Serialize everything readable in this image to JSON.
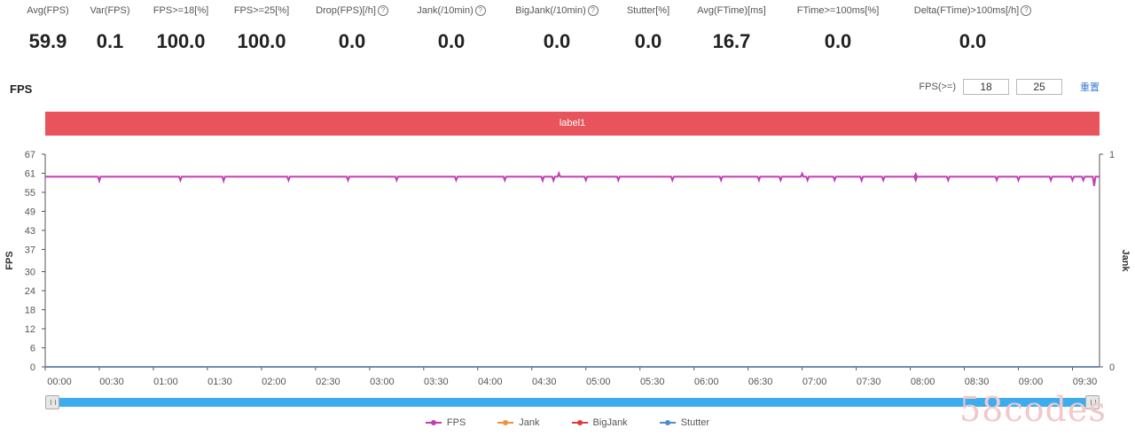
{
  "stats": [
    {
      "label": "Avg(FPS)",
      "value": "59.9",
      "info": false
    },
    {
      "label": "Var(FPS)",
      "value": "0.1",
      "info": false
    },
    {
      "label": "FPS>=18[%]",
      "value": "100.0",
      "info": false
    },
    {
      "label": "FPS>=25[%]",
      "value": "100.0",
      "info": false
    },
    {
      "label": "Drop(FPS)[/h]",
      "value": "0.0",
      "info": true
    },
    {
      "label": "Jank(/10min)",
      "value": "0.0",
      "info": true
    },
    {
      "label": "BigJank(/10min)",
      "value": "0.0",
      "info": true
    },
    {
      "label": "Stutter[%]",
      "value": "0.0",
      "info": false
    },
    {
      "label": "Avg(FTime)[ms]",
      "value": "16.7",
      "info": false
    },
    {
      "label": "FTime>=100ms[%]",
      "value": "0.0",
      "info": false
    },
    {
      "label": "Delta(FTime)>100ms[/h]",
      "value": "0.0",
      "info": true
    }
  ],
  "panel": {
    "title": "FPS",
    "threshold_label": "FPS(>=)",
    "threshold_1": "18",
    "threshold_2": "25",
    "reset_label": "重置"
  },
  "label_band": "label1",
  "colors": {
    "fps": "#c13fb3",
    "jank": "#f0923b",
    "bigjank": "#e23b3b",
    "stutter": "#4a8ecf",
    "band": "#e8535c",
    "slider": "#3cacef"
  },
  "watermark": "58codes",
  "chart_data": {
    "type": "line",
    "y_left": {
      "label": "FPS",
      "ticks": [
        0,
        6,
        12,
        18,
        24,
        30,
        37,
        43,
        49,
        55,
        61,
        67
      ],
      "range": [
        0,
        67
      ]
    },
    "y_right": {
      "label": "Jank",
      "ticks": [
        0,
        1
      ],
      "range": [
        0,
        1
      ]
    },
    "x": {
      "range_minutes": [
        0,
        9.75
      ],
      "ticks": [
        "00:00",
        "00:30",
        "01:00",
        "01:30",
        "02:00",
        "02:30",
        "03:00",
        "03:30",
        "04:00",
        "04:30",
        "05:00",
        "05:30",
        "06:00",
        "06:30",
        "07:00",
        "07:30",
        "08:00",
        "08:30",
        "09:00",
        "09:30"
      ]
    },
    "series": [
      {
        "name": "FPS",
        "axis": "left",
        "baseline": 59.9,
        "dips": [
          [
            0.5,
            58.6
          ],
          [
            1.25,
            58.8
          ],
          [
            1.65,
            58.6
          ],
          [
            2.25,
            58.8
          ],
          [
            2.8,
            58.8
          ],
          [
            3.25,
            58.8
          ],
          [
            3.8,
            58.8
          ],
          [
            4.25,
            58.8
          ],
          [
            4.6,
            58.7
          ],
          [
            4.75,
            61.0
          ],
          [
            4.7,
            58.7
          ],
          [
            5.0,
            58.8
          ],
          [
            5.3,
            58.8
          ],
          [
            5.8,
            58.8
          ],
          [
            6.25,
            58.8
          ],
          [
            6.6,
            58.8
          ],
          [
            6.8,
            58.8
          ],
          [
            7.05,
            58.8
          ],
          [
            7.0,
            60.9
          ],
          [
            7.3,
            58.8
          ],
          [
            7.55,
            58.7
          ],
          [
            7.75,
            58.8
          ],
          [
            8.05,
            60.8
          ],
          [
            8.05,
            58.8
          ],
          [
            8.35,
            58.8
          ],
          [
            8.8,
            58.8
          ],
          [
            9.0,
            58.8
          ],
          [
            9.3,
            58.8
          ],
          [
            9.5,
            58.8
          ],
          [
            9.6,
            58.8
          ],
          [
            9.7,
            57.0
          ]
        ]
      },
      {
        "name": "Jank",
        "axis": "right",
        "constant": 0
      },
      {
        "name": "BigJank",
        "axis": "right",
        "constant": 0
      },
      {
        "name": "Stutter",
        "axis": "right",
        "constant": 0
      }
    ],
    "legend_position": "bottom",
    "grid": false
  }
}
